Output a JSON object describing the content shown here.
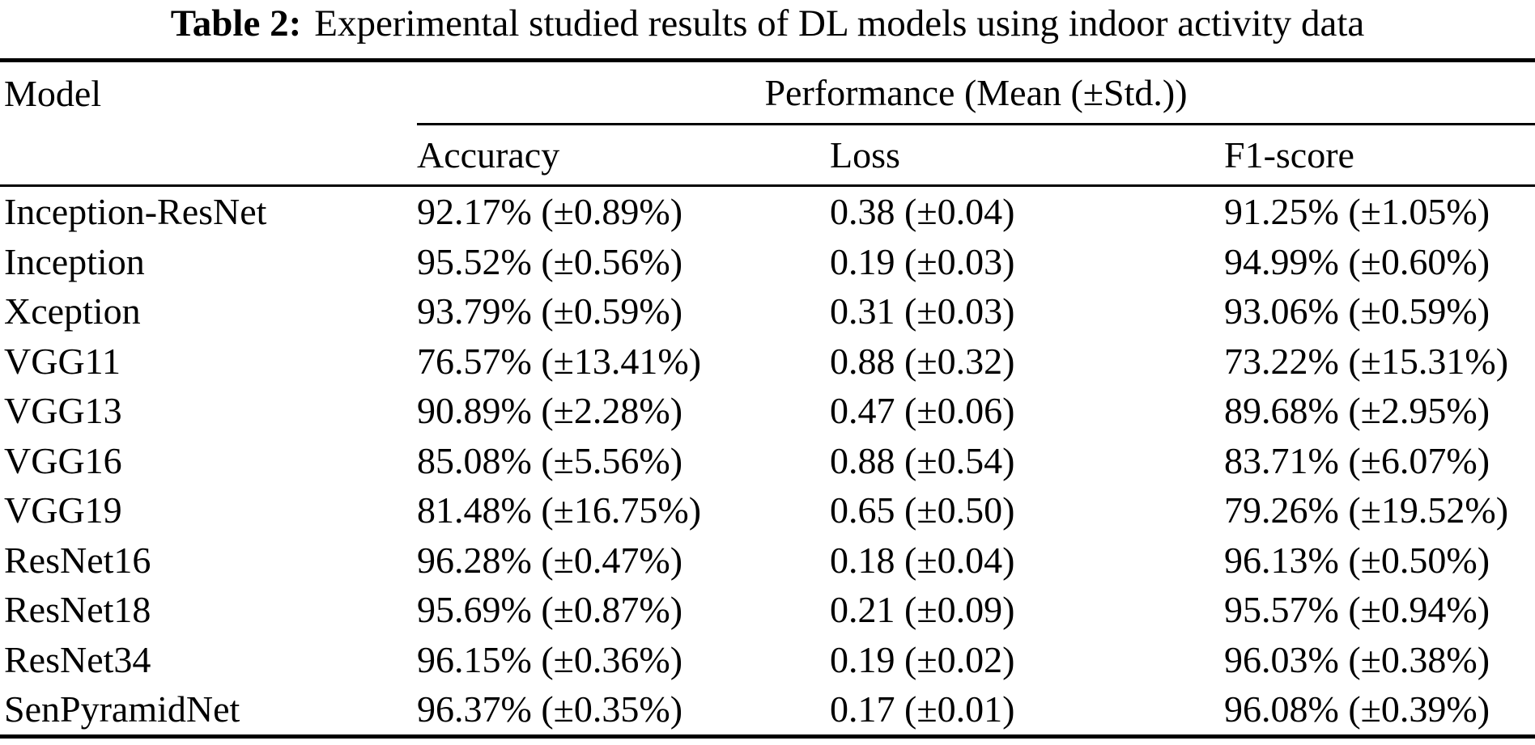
{
  "title": {
    "label": "Table 2:",
    "text": "Experimental studied results of DL models using indoor activity data"
  },
  "table": {
    "model_header": "Model",
    "performance_header": "Performance (Mean (±Std.))",
    "subheaders": {
      "accuracy": "Accuracy",
      "loss": "Loss",
      "f1": "F1-score"
    },
    "rows": [
      {
        "model": "Inception-ResNet",
        "accuracy": "92.17% (±0.89%)",
        "loss": "0.38 (±0.04)",
        "f1": "91.25% (±1.05%)"
      },
      {
        "model": "Inception",
        "accuracy": "95.52% (±0.56%)",
        "loss": "0.19 (±0.03)",
        "f1": "94.99% (±0.60%)"
      },
      {
        "model": "Xception",
        "accuracy": "93.79% (±0.59%)",
        "loss": "0.31 (±0.03)",
        "f1": "93.06% (±0.59%)"
      },
      {
        "model": "VGG11",
        "accuracy": "76.57% (±13.41%)",
        "loss": "0.88 (±0.32)",
        "f1": "73.22% (±15.31%)"
      },
      {
        "model": "VGG13",
        "accuracy": "90.89% (±2.28%)",
        "loss": "0.47 (±0.06)",
        "f1": "89.68% (±2.95%)"
      },
      {
        "model": "VGG16",
        "accuracy": "85.08% (±5.56%)",
        "loss": "0.88 (±0.54)",
        "f1": "83.71% (±6.07%)"
      },
      {
        "model": "VGG19",
        "accuracy": "81.48% (±16.75%)",
        "loss": "0.65 (±0.50)",
        "f1": "79.26% (±19.52%)"
      },
      {
        "model": "ResNet16",
        "accuracy": "96.28% (±0.47%)",
        "loss": "0.18 (±0.04)",
        "f1": "96.13% (±0.50%)"
      },
      {
        "model": "ResNet18",
        "accuracy": "95.69% (±0.87%)",
        "loss": "0.21 (±0.09)",
        "f1": "95.57% (±0.94%)"
      },
      {
        "model": "ResNet34",
        "accuracy": "96.15% (±0.36%)",
        "loss": "0.19 (±0.02)",
        "f1": "96.03% (±0.38%)"
      },
      {
        "model": "SenPyramidNet",
        "accuracy": "96.37% (±0.35%)",
        "loss": "0.17 (±0.01)",
        "f1": "96.08% (±0.39%)"
      }
    ]
  },
  "colors": {
    "text": "#000000",
    "background": "#ffffff",
    "rule": "#000000"
  }
}
